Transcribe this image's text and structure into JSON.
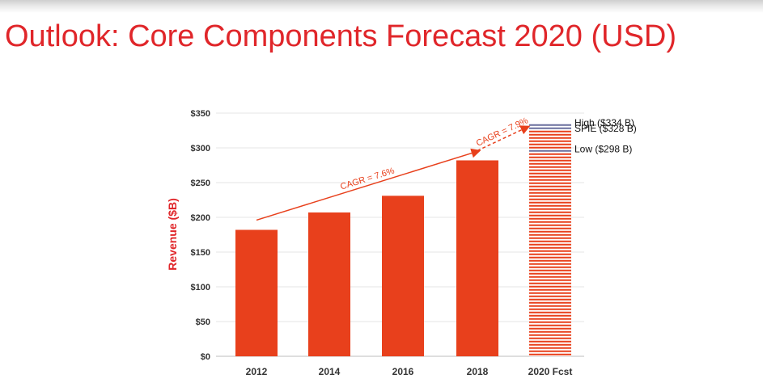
{
  "slide": {
    "title": "Outlook: Core Components Forecast 2020 (USD)"
  },
  "colors": {
    "bar": "#e8401c",
    "title": "#e0262a",
    "forecast_stripe": "#e8401c",
    "forecast_band": "#6a6f9e"
  },
  "chart_data": {
    "type": "bar",
    "categories": [
      "2012",
      "2014",
      "2016",
      "2018",
      "2020 Fcst"
    ],
    "values": [
      182,
      207,
      231,
      282,
      334
    ],
    "forecast_index": 4,
    "forecast_range": {
      "high": {
        "value": 334,
        "label": "High  ($334 B)"
      },
      "mid": {
        "value": 328,
        "label": "SPIE ($328 B)"
      },
      "low": {
        "value": 298,
        "label": "Low ($298 B)"
      }
    },
    "ylabel": "Revenue ($B)",
    "xlabel": "",
    "ylim": [
      0,
      350
    ],
    "yticks": [
      0,
      50,
      100,
      150,
      200,
      250,
      300,
      350
    ],
    "ytick_labels": [
      "$0",
      "$50",
      "$100",
      "$150",
      "$200",
      "$250",
      "$300",
      "$350"
    ],
    "grid": true,
    "annotations": [
      {
        "text": "CAGR = 7.6%",
        "from": {
          "x": "2012",
          "y": 196
        },
        "to": {
          "x": "2018",
          "y": 296
        },
        "style": "solid-arrow"
      },
      {
        "text": "CAGR = 7.9%",
        "from": {
          "x": "2018",
          "y": 296
        },
        "to": {
          "x": "2020 Fcst",
          "y": 331
        },
        "style": "dashed-arrow"
      }
    ]
  }
}
